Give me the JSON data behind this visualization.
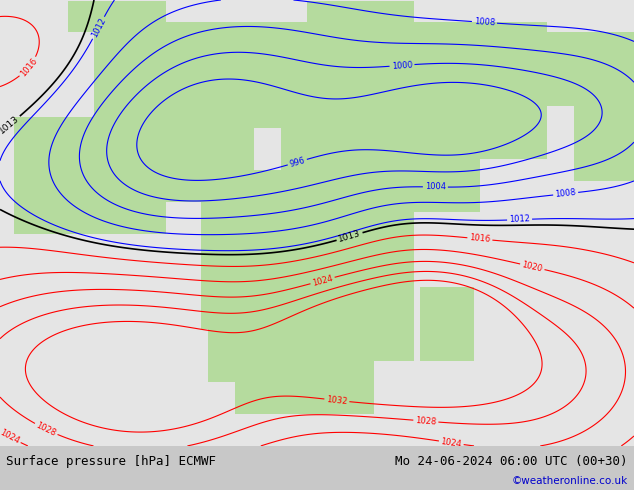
{
  "title_left": "Surface pressure [hPa] ECMWF",
  "title_right": "Mo 24-06-2024 06:00 UTC (00+30)",
  "copyright": "©weatheronline.co.uk",
  "bg_color": "#c8c8c8",
  "land_color_rgb": [
    0.71,
    0.86,
    0.62
  ],
  "ocean_color_rgb": [
    0.9,
    0.9,
    0.9
  ],
  "fig_width": 6.34,
  "fig_height": 4.9,
  "dpi": 100,
  "title_fontsize": 9,
  "copyright_color": "#0000cc",
  "lon_min": -20,
  "lon_max": 75,
  "lat_min": -42,
  "lat_max": 42
}
